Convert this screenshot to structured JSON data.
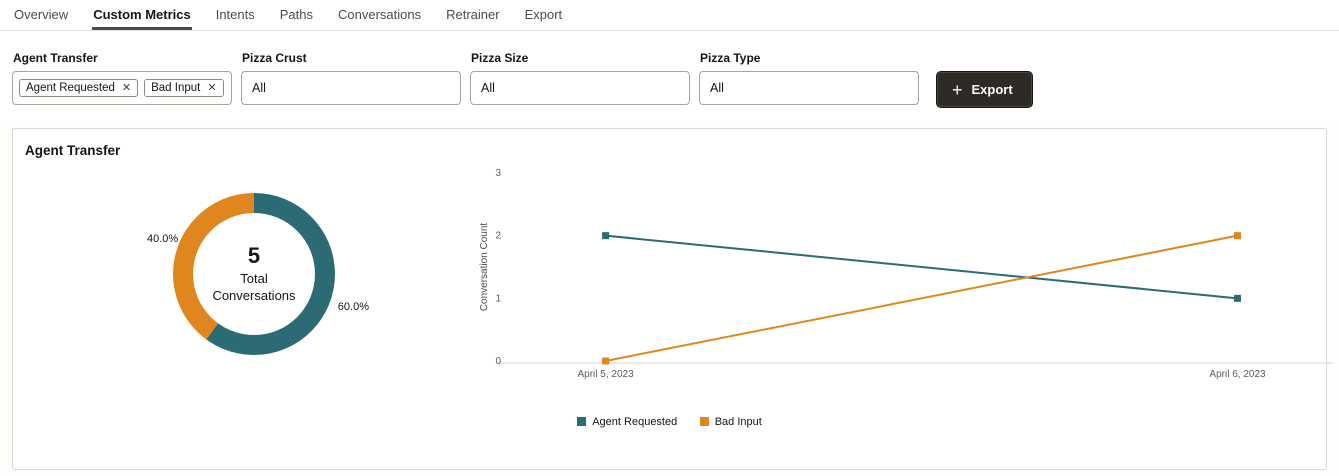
{
  "tabs": [
    "Overview",
    "Custom Metrics",
    "Intents",
    "Paths",
    "Conversations",
    "Retrainer",
    "Export"
  ],
  "filters": {
    "agent_transfer": {
      "label": "Agent Transfer",
      "chips": [
        "Agent Requested",
        "Bad Input"
      ],
      "remove_icon": "✕"
    },
    "pizza_crust": {
      "label": "Pizza Crust",
      "value": "All"
    },
    "pizza_size": {
      "label": "Pizza Size",
      "value": "All"
    },
    "pizza_type": {
      "label": "Pizza Type",
      "value": "All"
    }
  },
  "export_button": {
    "label": "Export",
    "plus_icon": "+"
  },
  "panel": {
    "title": "Agent Transfer"
  },
  "colors": {
    "teal": "#2c6a74",
    "orange": "#e1861f",
    "active_tab_underline": "#3f5048",
    "export_bg": "#2e2b27"
  },
  "chart_data": [
    {
      "type": "pie",
      "subtype": "donut",
      "title": "Agent Transfer",
      "slices": [
        {
          "label": "Agent Requested",
          "percent": 60.0,
          "color": "#2c6a74"
        },
        {
          "label": "Bad Input",
          "percent": 40.0,
          "color": "#e1861f"
        }
      ],
      "pct_labels": [
        "40.0%",
        "60.0%"
      ],
      "center_value": "5",
      "center_label_lines": [
        "Total",
        "Conversations"
      ]
    },
    {
      "type": "line",
      "x": [
        "April 5, 2023",
        "April 6, 2023"
      ],
      "series": [
        {
          "name": "Agent Requested",
          "values": [
            2,
            1
          ],
          "color": "#2c6a74"
        },
        {
          "name": "Bad Input",
          "values": [
            0,
            2
          ],
          "color": "#e1861f"
        }
      ],
      "ylabel": "Conversation Count",
      "ylim": [
        0,
        3
      ],
      "yticks": [
        0,
        1,
        2,
        3
      ],
      "grid": false,
      "legend_position": "bottom"
    }
  ]
}
